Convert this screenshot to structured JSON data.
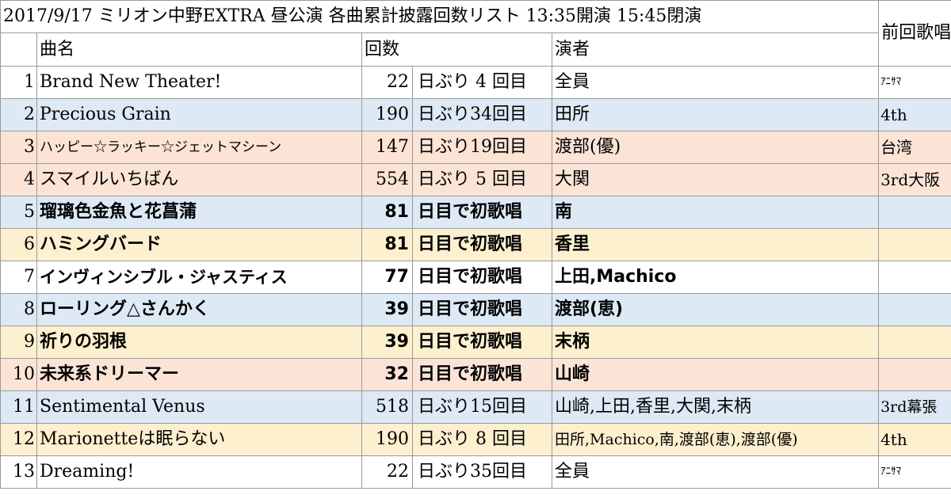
{
  "title": "2017/9/17 ミリオン中野EXTRA 昼公演 各曲累計披露回数リスト 13:35開演 15:45閉演",
  "headers": {
    "song": "曲名",
    "count": "回数",
    "performer": "演者",
    "previous": "前回歌唱"
  },
  "colors": {
    "white": "#ffffff",
    "blue": "#dde9f4",
    "pink": "#fbe4d6",
    "yellow": "#fdf0cf",
    "border": "#9a9a9a"
  },
  "rows": [
    {
      "no": "1",
      "song": "Brand New Theater!",
      "days": "22",
      "unit": "日ぶり 4 回目",
      "performer": "全員",
      "previous": "ｱﾆｻﾏ"
    },
    {
      "no": "2",
      "song": "Precious Grain",
      "days": "190",
      "unit": "日ぶり34回目",
      "performer": "田所",
      "previous": "4th"
    },
    {
      "no": "3",
      "song": "ハッピー☆ラッキー☆ジェットマシーン",
      "days": "147",
      "unit": "日ぶり19回目",
      "performer": "渡部(優)",
      "previous": "台湾"
    },
    {
      "no": "4",
      "song": "スマイルいちばん",
      "days": "554",
      "unit": "日ぶり 5 回目",
      "performer": "大関",
      "previous": "3rd大阪"
    },
    {
      "no": "5",
      "song": "瑠璃色金魚と花菖蒲",
      "days": "81",
      "unit": "日目で初歌唱",
      "performer": "南",
      "previous": ""
    },
    {
      "no": "6",
      "song": "ハミングバード",
      "days": "81",
      "unit": "日目で初歌唱",
      "performer": "香里",
      "previous": ""
    },
    {
      "no": "7",
      "song": "インヴィンシブル・ジャスティス",
      "days": "77",
      "unit": "日目で初歌唱",
      "performer": "上田,Machico",
      "previous": ""
    },
    {
      "no": "8",
      "song": "ローリング△さんかく",
      "days": "39",
      "unit": "日目で初歌唱",
      "performer": "渡部(恵)",
      "previous": ""
    },
    {
      "no": "9",
      "song": "祈りの羽根",
      "days": "39",
      "unit": "日目で初歌唱",
      "performer": "末柄",
      "previous": ""
    },
    {
      "no": "10",
      "song": "未来系ドリーマー",
      "days": "32",
      "unit": "日目で初歌唱",
      "performer": "山崎",
      "previous": ""
    },
    {
      "no": "11",
      "song": "Sentimental Venus",
      "days": "518",
      "unit": "日ぶり15回目",
      "performer": "山崎,上田,香里,大関,末柄",
      "previous": "3rd幕張"
    },
    {
      "no": "12",
      "song": "Marionetteは眠らない",
      "days": "190",
      "unit": "日ぶり 8 回目",
      "performer": "田所,Machico,南,渡部(恵),渡部(優)",
      "previous": "4th"
    },
    {
      "no": "13",
      "song": "Dreaming!",
      "days": "22",
      "unit": "日ぶり35回目",
      "performer": "全員",
      "previous": "ｱﾆｻﾏ"
    }
  ]
}
